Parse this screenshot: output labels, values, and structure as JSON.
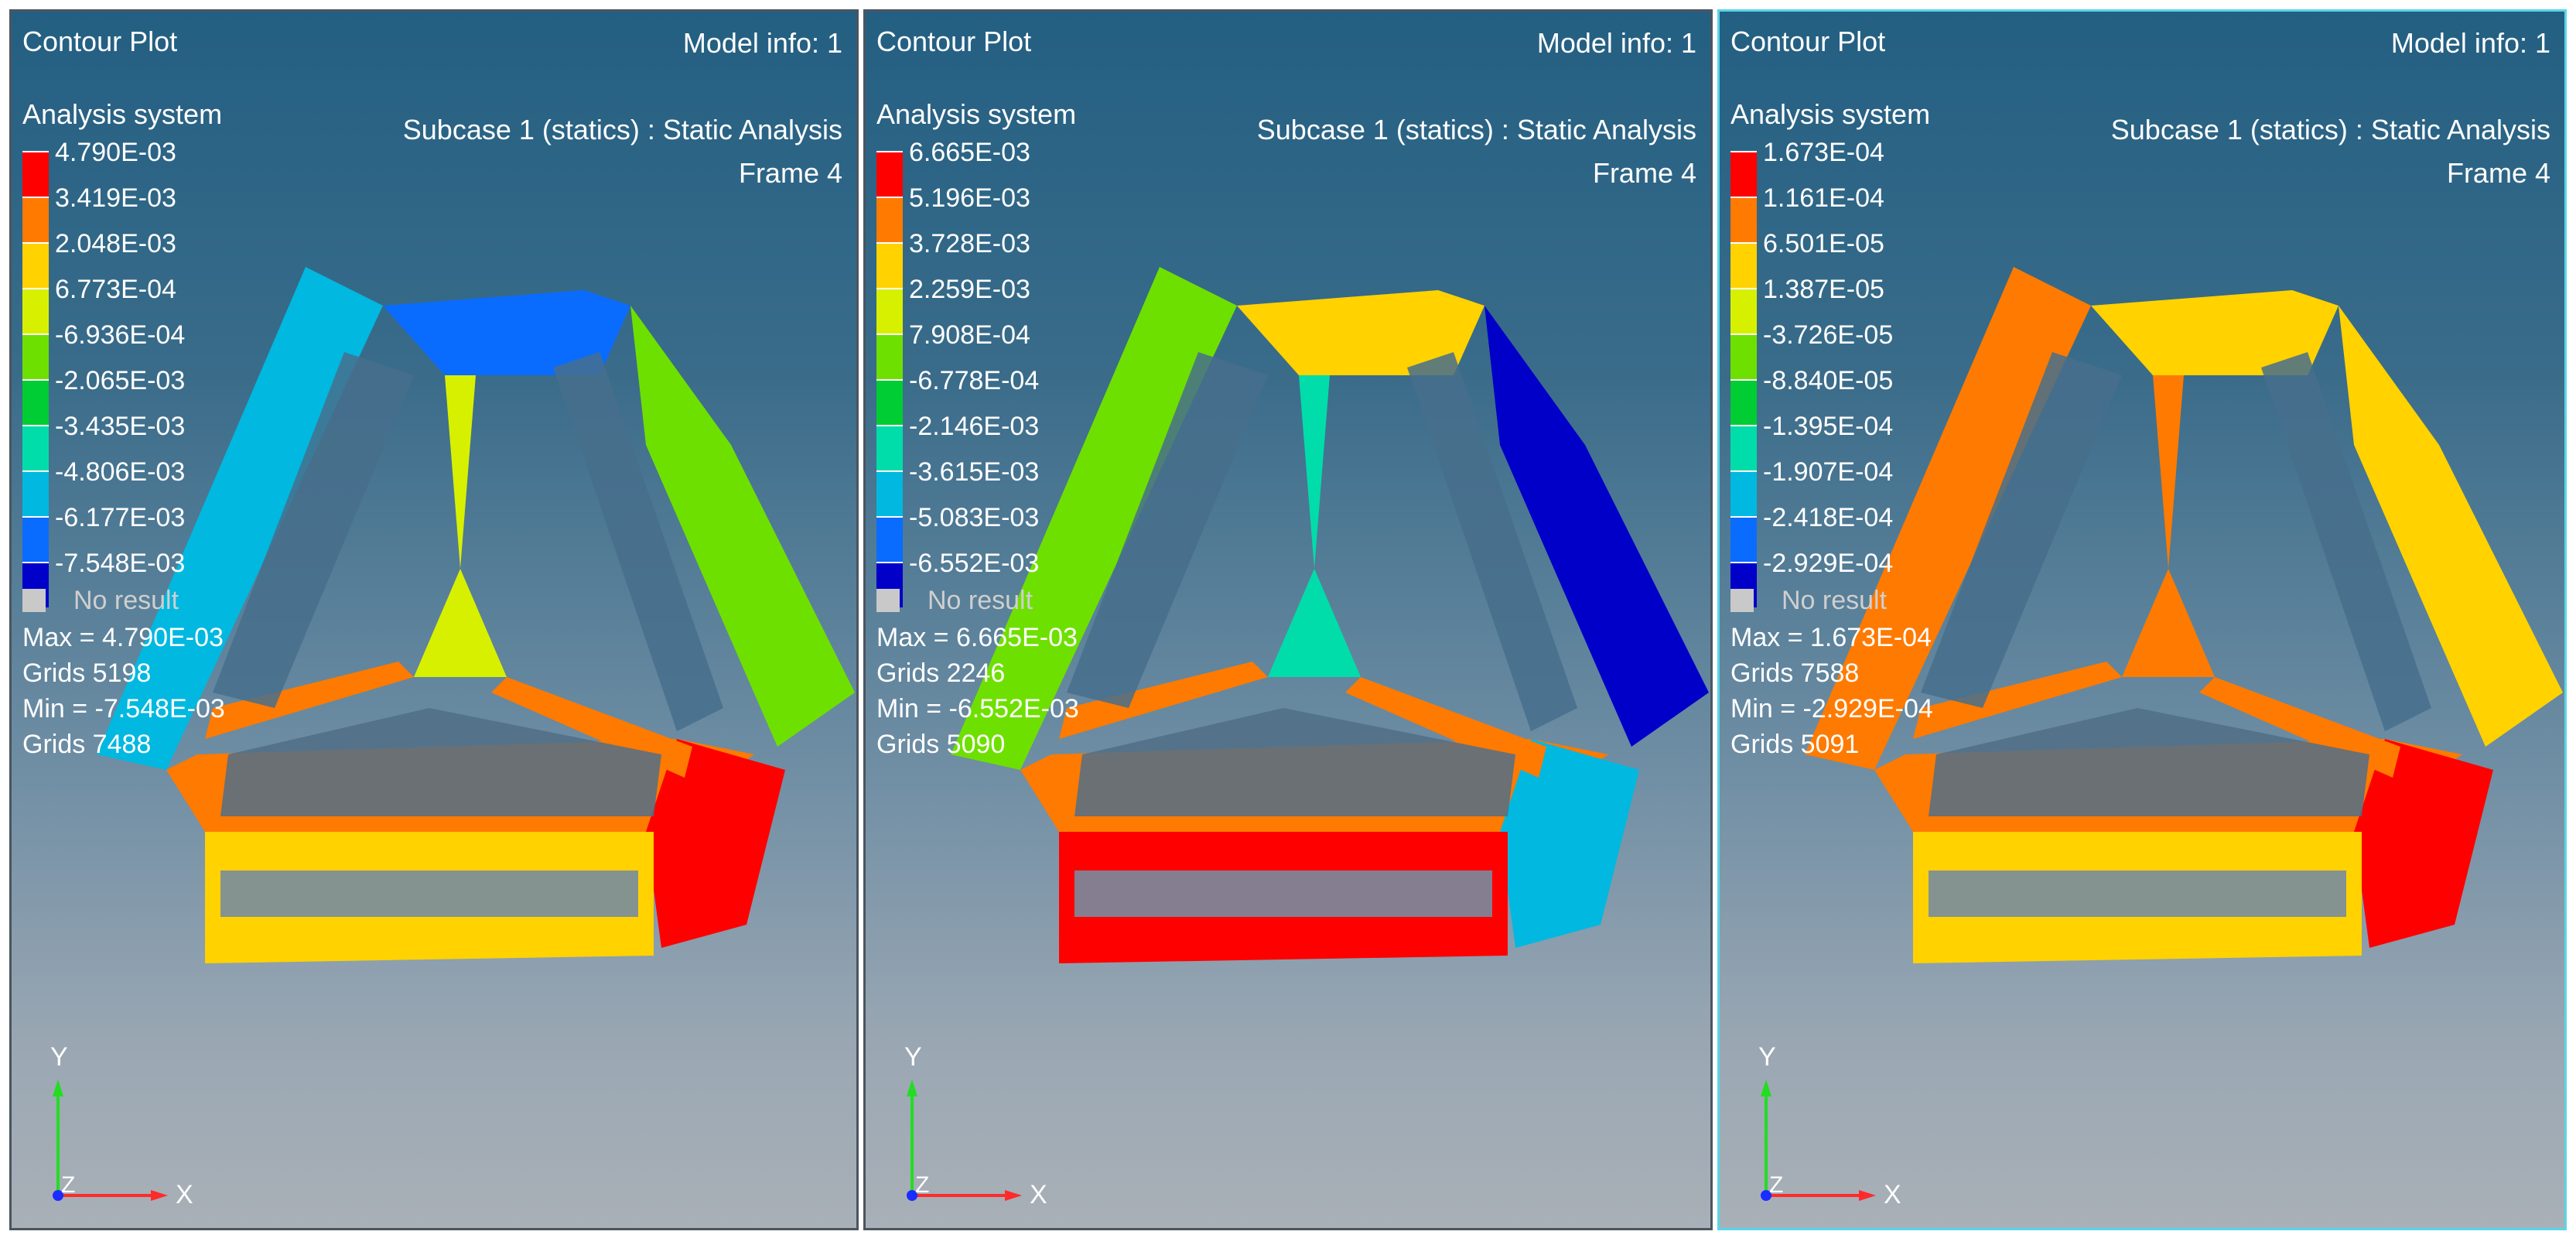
{
  "viewports": [
    {
      "title": "Contour Plot",
      "model_info": "Model info: 1",
      "subcase": "Subcase 1 (statics) : Static Analysis",
      "frame": "Frame 4",
      "legend_title": "Analysis system",
      "legend_values": [
        "4.790E-03",
        "3.419E-03",
        "2.048E-03",
        "6.773E-04",
        "-6.936E-04",
        "-2.065E-03",
        "-3.435E-03",
        "-4.806E-03",
        "-6.177E-03",
        "-7.548E-03"
      ],
      "no_result": "No result",
      "max": "Max = 4.790E-03",
      "max_grids": "Grids 5198",
      "min": "Min = -7.548E-03",
      "min_grids": "Grids 7488",
      "axis_y": "Y",
      "axis_x": "X",
      "axis_z": "Z",
      "active": false
    },
    {
      "title": "Contour Plot",
      "model_info": "Model info: 1",
      "subcase": "Subcase 1 (statics) : Static Analysis",
      "frame": "Frame 4",
      "legend_title": "Analysis system",
      "legend_values": [
        "6.665E-03",
        "5.196E-03",
        "3.728E-03",
        "2.259E-03",
        "7.908E-04",
        "-6.778E-04",
        "-2.146E-03",
        "-3.615E-03",
        "-5.083E-03",
        "-6.552E-03"
      ],
      "no_result": "No result",
      "max": "Max = 6.665E-03",
      "max_grids": "Grids 2246",
      "min": "Min = -6.552E-03",
      "min_grids": "Grids 5090",
      "axis_y": "Y",
      "axis_x": "X",
      "axis_z": "Z",
      "active": false
    },
    {
      "title": "Contour Plot",
      "model_info": "Model info: 1",
      "subcase": "Subcase 1 (statics) : Static Analysis",
      "frame": "Frame 4",
      "legend_title": "Analysis system",
      "legend_values": [
        "1.673E-04",
        "1.161E-04",
        "6.501E-05",
        "1.387E-05",
        "-3.726E-05",
        "-8.840E-05",
        "-1.395E-04",
        "-1.907E-04",
        "-2.418E-04",
        "-2.929E-04"
      ],
      "no_result": "No result",
      "max": "Max = 1.673E-04",
      "max_grids": "Grids 7588",
      "min": "Min = -2.929E-04",
      "min_grids": "Grids 5091",
      "axis_y": "Y",
      "axis_x": "X",
      "axis_z": "Z",
      "active": true
    }
  ],
  "legend_colors": [
    "#ff0000",
    "#ff7a00",
    "#ffd200",
    "#d7f000",
    "#6ee000",
    "#00cc33",
    "#00ddaa",
    "#00b8e0",
    "#0a6cff",
    "#0000c8"
  ],
  "no_result_color": "#c9c9c9",
  "triad_colors": {
    "x": "#ff2a2a",
    "y": "#22dd22",
    "z": "#1a2cff"
  }
}
